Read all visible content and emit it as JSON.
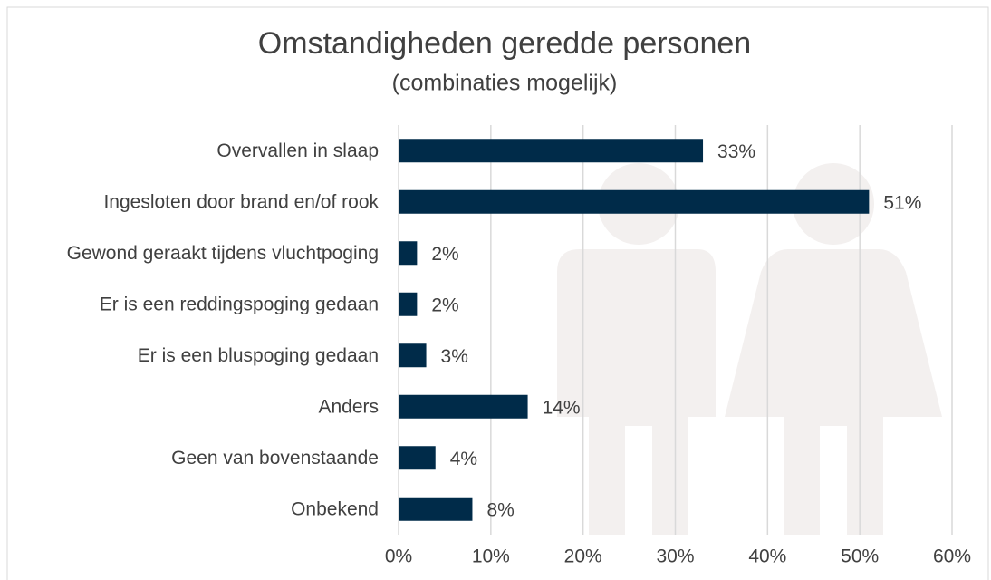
{
  "chart_data": {
    "type": "bar",
    "orientation": "horizontal",
    "title": "Omstandigheden geredde personen",
    "subtitle": "(combinaties mogelijk)",
    "categories": [
      "Overvallen in slaap",
      "Ingesloten door brand en/of rook",
      "Gewond geraakt tijdens vluchtpoging",
      "Er is een reddingspoging gedaan",
      "Er is een bluspoging gedaan",
      "Anders",
      "Geen van bovenstaande",
      "Onbekend"
    ],
    "values": [
      33,
      51,
      2,
      2,
      3,
      14,
      4,
      8
    ],
    "value_labels": [
      "33%",
      "51%",
      "2%",
      "2%",
      "3%",
      "14%",
      "4%",
      "8%"
    ],
    "color": "#002b49",
    "xlim": [
      0,
      60
    ],
    "xticks": [
      {
        "value": 0,
        "label": "0%"
      },
      {
        "value": 10,
        "label": "10%"
      },
      {
        "value": 20,
        "label": "20%"
      },
      {
        "value": 30,
        "label": "30%"
      },
      {
        "value": 40,
        "label": "40%"
      },
      {
        "value": 50,
        "label": "50%"
      },
      {
        "value": 60,
        "label": "60%"
      }
    ],
    "grid": true
  }
}
